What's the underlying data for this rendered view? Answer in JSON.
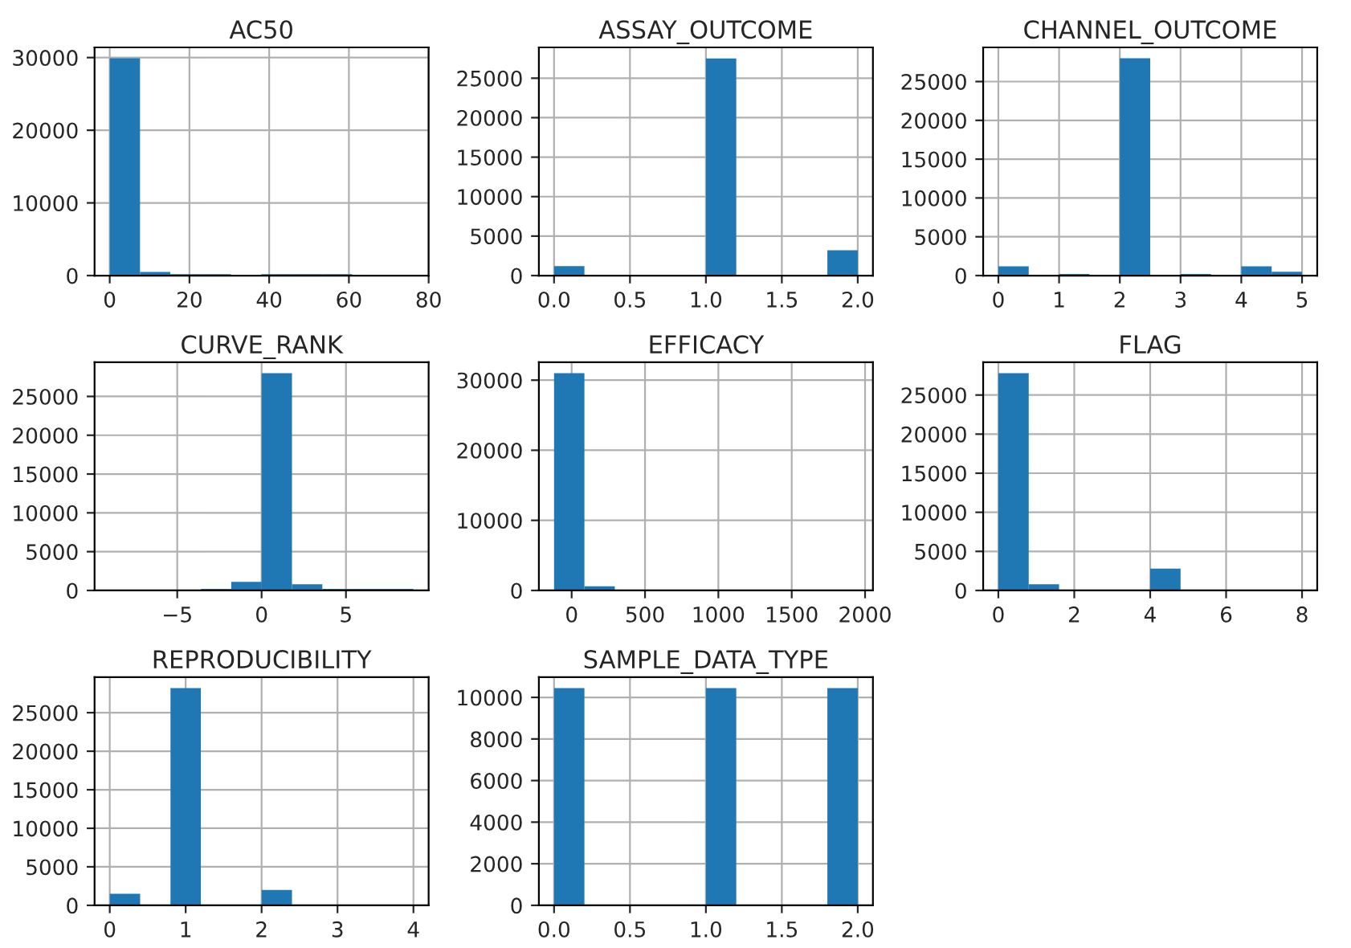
{
  "chart_data": [
    {
      "type": "histogram",
      "title": "AC50",
      "color": "#1f77b4",
      "grid": true,
      "bins": [
        0,
        7.6,
        15.2,
        22.8,
        30.4,
        38,
        45.6,
        53.2,
        60.8,
        68.4,
        76
      ],
      "values": [
        29900,
        500,
        200,
        200,
        0,
        200,
        200,
        200,
        0,
        0
      ],
      "xlim": [
        -3.8,
        80
      ],
      "xticks": [
        0,
        20,
        40,
        60,
        80
      ],
      "ylim": [
        0,
        31400
      ],
      "yticks": [
        0,
        10000,
        20000,
        30000
      ]
    },
    {
      "type": "histogram",
      "title": "ASSAY_OUTCOME",
      "color": "#1f77b4",
      "grid": true,
      "bins": [
        0,
        0.2,
        0.4,
        0.6,
        0.8,
        1.0,
        1.2,
        1.4,
        1.6,
        1.8,
        2.0
      ],
      "values": [
        1200,
        0,
        0,
        0,
        0,
        27500,
        0,
        0,
        0,
        3200
      ],
      "xlim": [
        -0.1,
        2.1
      ],
      "xticks": [
        {
          "value": 0,
          "label": "0.0"
        },
        {
          "value": 0.5,
          "label": "0.5"
        },
        {
          "value": 1,
          "label": "1.0"
        },
        {
          "value": 1.5,
          "label": "1.5"
        },
        {
          "value": 2,
          "label": "2.0"
        }
      ],
      "ylim": [
        0,
        28900
      ],
      "yticks": [
        0,
        5000,
        10000,
        15000,
        20000,
        25000
      ]
    },
    {
      "type": "histogram",
      "title": "CHANNEL_OUTCOME",
      "color": "#1f77b4",
      "grid": true,
      "bins": [
        0,
        0.5,
        1,
        1.5,
        2,
        2.5,
        3,
        3.5,
        4,
        4.5,
        5
      ],
      "values": [
        1200,
        0,
        200,
        0,
        28000,
        0,
        200,
        0,
        1200,
        500
      ],
      "xlim": [
        -0.25,
        5.25
      ],
      "xticks": [
        0,
        1,
        2,
        3,
        4,
        5
      ],
      "ylim": [
        0,
        29400
      ],
      "yticks": [
        0,
        5000,
        10000,
        15000,
        20000,
        25000
      ]
    },
    {
      "type": "histogram",
      "title": "CURVE_RANK",
      "color": "#1f77b4",
      "grid": true,
      "bins": [
        -9,
        -7.2,
        -5.4,
        -3.6,
        -1.8,
        0,
        1.8,
        3.6,
        5.4,
        7.2,
        9
      ],
      "values": [
        0,
        0,
        0,
        200,
        1100,
        28000,
        800,
        200,
        200,
        200
      ],
      "xlim": [
        -9.9,
        9.9
      ],
      "xticks": [
        {
          "value": -5,
          "label": "−5"
        },
        0,
        5
      ],
      "ylim": [
        0,
        29400
      ],
      "yticks": [
        0,
        5000,
        10000,
        15000,
        20000,
        25000
      ]
    },
    {
      "type": "histogram",
      "title": "EFFICACY",
      "color": "#1f77b4",
      "grid": true,
      "bins": [
        -120,
        87,
        294,
        501,
        708,
        915,
        1122,
        1329,
        1536,
        1743,
        1950
      ],
      "values": [
        31000,
        600,
        0,
        0,
        0,
        0,
        0,
        0,
        0,
        0
      ],
      "xlim": [
        -223.5,
        2053.5
      ],
      "xticks": [
        0,
        500,
        1000,
        1500,
        2000
      ],
      "ylim": [
        0,
        32550
      ],
      "yticks": [
        0,
        10000,
        20000,
        30000
      ]
    },
    {
      "type": "histogram",
      "title": "FLAG",
      "color": "#1f77b4",
      "grid": true,
      "bins": [
        0,
        0.8,
        1.6,
        2.4,
        3.2,
        4.0,
        4.8,
        5.6,
        6.4,
        7.2,
        8.0
      ],
      "values": [
        27800,
        800,
        0,
        0,
        0,
        2800,
        0,
        0,
        0,
        0
      ],
      "xlim": [
        -0.4,
        8.4
      ],
      "xticks": [
        0,
        2,
        4,
        6,
        8
      ],
      "ylim": [
        0,
        29190
      ],
      "yticks": [
        0,
        5000,
        10000,
        15000,
        20000,
        25000
      ]
    },
    {
      "type": "histogram",
      "title": "REPRODUCIBILITY",
      "color": "#1f77b4",
      "grid": true,
      "bins": [
        0,
        0.4,
        0.8,
        1.2,
        1.6,
        2.0,
        2.4,
        2.8,
        3.2,
        3.6,
        4.0
      ],
      "values": [
        1500,
        0,
        28200,
        0,
        0,
        2000,
        0,
        0,
        0,
        0
      ],
      "xlim": [
        -0.2,
        4.2
      ],
      "xticks": [
        0,
        1,
        2,
        3,
        4
      ],
      "ylim": [
        0,
        29610
      ],
      "yticks": [
        0,
        5000,
        10000,
        15000,
        20000,
        25000
      ]
    },
    {
      "type": "histogram",
      "title": "SAMPLE_DATA_TYPE",
      "color": "#1f77b4",
      "grid": true,
      "bins": [
        0,
        0.2,
        0.4,
        0.6,
        0.8,
        1.0,
        1.2,
        1.4,
        1.6,
        1.8,
        2.0
      ],
      "values": [
        10450,
        0,
        0,
        0,
        0,
        10450,
        0,
        0,
        0,
        10450
      ],
      "xlim": [
        -0.1,
        2.1
      ],
      "xticks": [
        {
          "value": 0,
          "label": "0.0"
        },
        {
          "value": 0.5,
          "label": "0.5"
        },
        {
          "value": 1,
          "label": "1.0"
        },
        {
          "value": 1.5,
          "label": "1.5"
        },
        {
          "value": 2,
          "label": "2.0"
        }
      ],
      "ylim": [
        0,
        10972
      ],
      "yticks": [
        0,
        2000,
        4000,
        6000,
        8000,
        10000
      ]
    }
  ]
}
